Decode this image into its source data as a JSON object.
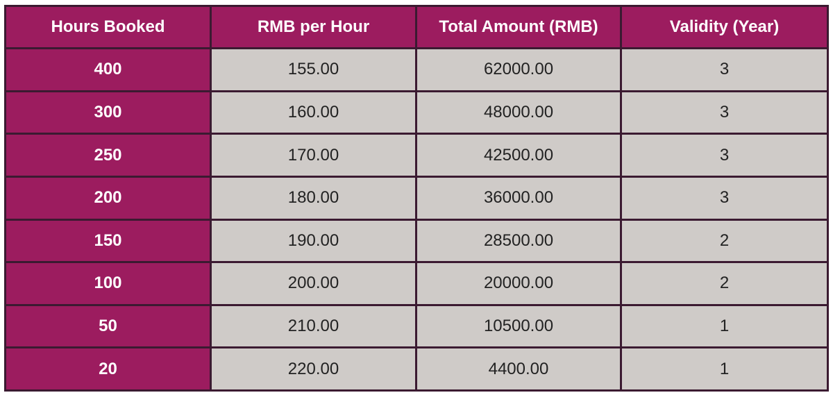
{
  "table": {
    "headers": [
      "Hours Booked",
      "RMB per Hour",
      "Total Amount (RMB)",
      "Validity (Year)"
    ],
    "rows": [
      [
        "400",
        "155.00",
        "62000.00",
        "3"
      ],
      [
        "300",
        "160.00",
        "48000.00",
        "3"
      ],
      [
        "250",
        "170.00",
        "42500.00",
        "3"
      ],
      [
        "200",
        "180.00",
        "36000.00",
        "3"
      ],
      [
        "150",
        "190.00",
        "28500.00",
        "2"
      ],
      [
        "100",
        "200.00",
        "20000.00",
        "2"
      ],
      [
        "50",
        "210.00",
        "10500.00",
        "1"
      ],
      [
        "20",
        "220.00",
        "4400.00",
        "1"
      ]
    ]
  },
  "colors": {
    "header": "#9c1c5f",
    "cell": "#cfcbc8",
    "border": "#3b1a31"
  }
}
